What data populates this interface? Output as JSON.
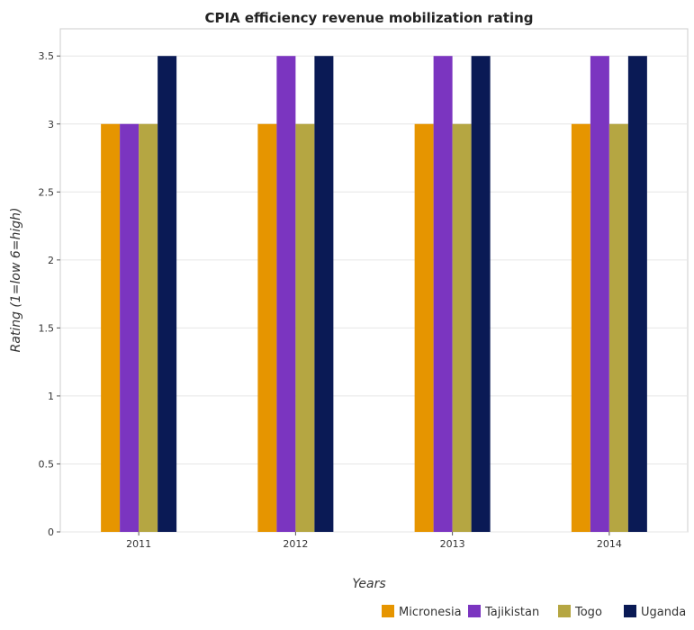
{
  "chart_data": {
    "type": "bar",
    "title": "CPIA efficiency revenue mobilization rating",
    "xlabel": "Years",
    "ylabel": "Rating (1=low 6=high)",
    "categories": [
      "2011",
      "2012",
      "2013",
      "2014"
    ],
    "ylim": [
      0,
      3.7
    ],
    "yticks": [
      0,
      0.5,
      1,
      1.5,
      2,
      2.5,
      3,
      3.5
    ],
    "ytick_labels": [
      "0",
      "0.5",
      "1",
      "1.5",
      "2",
      "2.5",
      "3",
      "3.5"
    ],
    "grid": true,
    "legend_position": "bottom-right",
    "series": [
      {
        "name": "Micronesia",
        "color": "#e69500",
        "values": [
          3,
          3,
          3,
          3
        ]
      },
      {
        "name": "Tajikistan",
        "color": "#7b35c0",
        "values": [
          3,
          3.5,
          3.5,
          3.5
        ]
      },
      {
        "name": "Togo",
        "color": "#b5a642",
        "values": [
          3,
          3,
          3,
          3
        ]
      },
      {
        "name": "Uganda",
        "color": "#0a1a55",
        "values": [
          3.5,
          3.5,
          3.5,
          3.5
        ]
      }
    ]
  }
}
